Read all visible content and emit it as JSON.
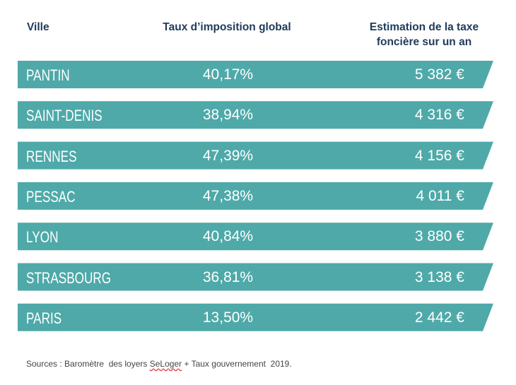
{
  "header": {
    "columns": [
      "Ville",
      "Taux d’imposition global",
      "Estimation de la taxe foncière sur un an"
    ]
  },
  "table": {
    "rows": [
      [
        "PANTIN",
        "40,17%",
        "5 382 €"
      ],
      [
        "SAINT-DENIS",
        "38,94%",
        "4 316 €"
      ],
      [
        "RENNES",
        "47,39%",
        "4 156 €"
      ],
      [
        "PESSAC",
        "47,38%",
        "4 011 €"
      ],
      [
        "LYON",
        "40,84%",
        "3 880 €"
      ],
      [
        "STRASBOURG",
        "36,81%",
        "3 138 €"
      ],
      [
        "PARIS",
        "13,50%",
        "2 442 €"
      ]
    ]
  },
  "footer": {
    "source_prefix": "Sources : Baromètre  des loyers ",
    "source_brand": "SeLoger",
    "source_suffix": " + Taux gouvernement  2019."
  }
}
